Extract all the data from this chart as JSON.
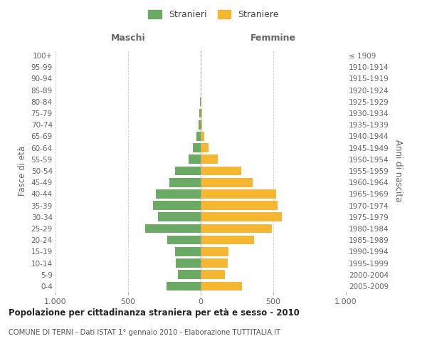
{
  "age_groups": [
    "0-4",
    "5-9",
    "10-14",
    "15-19",
    "20-24",
    "25-29",
    "30-34",
    "35-39",
    "40-44",
    "45-49",
    "50-54",
    "55-59",
    "60-64",
    "65-69",
    "70-74",
    "75-79",
    "80-84",
    "85-89",
    "90-94",
    "95-99",
    "100+"
  ],
  "birth_years": [
    "2005-2009",
    "2000-2004",
    "1995-1999",
    "1990-1994",
    "1985-1989",
    "1980-1984",
    "1975-1979",
    "1970-1974",
    "1965-1969",
    "1960-1964",
    "1955-1959",
    "1950-1954",
    "1945-1949",
    "1940-1944",
    "1935-1939",
    "1930-1934",
    "1925-1929",
    "1920-1924",
    "1915-1919",
    "1910-1914",
    "≤ 1909"
  ],
  "maschi": [
    235,
    155,
    170,
    175,
    230,
    380,
    295,
    330,
    310,
    215,
    175,
    85,
    55,
    30,
    15,
    8,
    5,
    0,
    0,
    0,
    0
  ],
  "femmine": [
    285,
    165,
    185,
    190,
    370,
    490,
    560,
    530,
    520,
    360,
    280,
    120,
    55,
    25,
    12,
    8,
    5,
    0,
    0,
    0,
    0
  ],
  "color_maschi": "#6aaa64",
  "color_femmine": "#f5b731",
  "title": "Popolazione per cittadinanza straniera per età e sesso - 2010",
  "subtitle": "COMUNE DI TERNI - Dati ISTAT 1° gennaio 2010 - Elaborazione TUTTITALIA.IT",
  "ylabel_left": "Fasce di età",
  "ylabel_right": "Anni di nascita",
  "xlabel_left": "Maschi",
  "xlabel_right": "Femmine",
  "legend_maschi": "Stranieri",
  "legend_femmine": "Straniere",
  "xlim": 1000,
  "background_color": "#ffffff",
  "grid_color": "#cccccc"
}
